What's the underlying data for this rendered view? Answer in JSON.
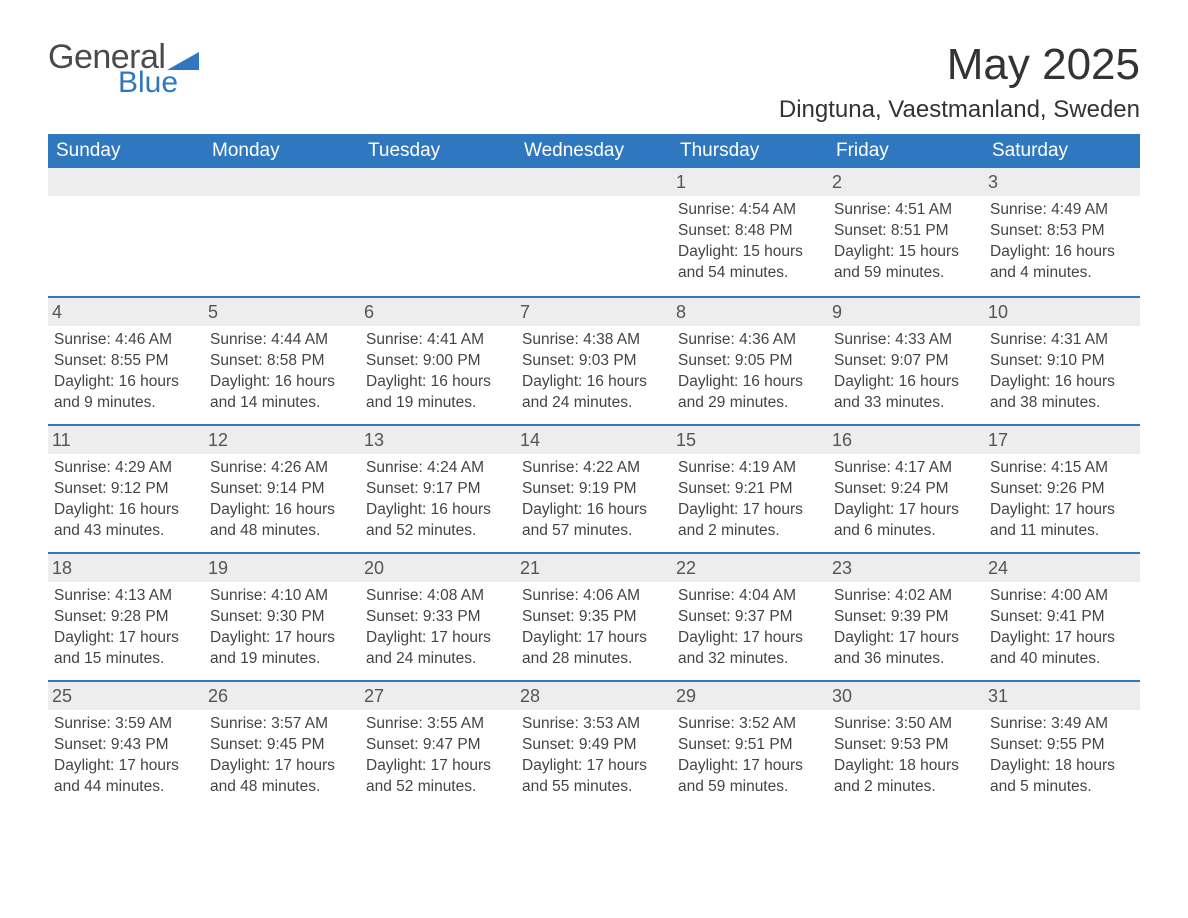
{
  "logo": {
    "text1": "General",
    "text2": "Blue",
    "triangle_color": "#2f78bf"
  },
  "title": "May 2025",
  "location": "Dingtuna, Vaestmanland, Sweden",
  "colors": {
    "header_bg": "#2f78bf",
    "header_text": "#ffffff",
    "daynum_bg": "#ededed",
    "body_text": "#444444",
    "rule": "#2f78bf"
  },
  "typography": {
    "title_fontsize": 44,
    "location_fontsize": 24,
    "dayheader_fontsize": 19,
    "cell_fontsize": 15.5
  },
  "day_headers": [
    "Sunday",
    "Monday",
    "Tuesday",
    "Wednesday",
    "Thursday",
    "Friday",
    "Saturday"
  ],
  "weeks": [
    [
      null,
      null,
      null,
      null,
      {
        "n": "1",
        "sunrise": "Sunrise: 4:54 AM",
        "sunset": "Sunset: 8:48 PM",
        "d1": "Daylight: 15 hours",
        "d2": "and 54 minutes."
      },
      {
        "n": "2",
        "sunrise": "Sunrise: 4:51 AM",
        "sunset": "Sunset: 8:51 PM",
        "d1": "Daylight: 15 hours",
        "d2": "and 59 minutes."
      },
      {
        "n": "3",
        "sunrise": "Sunrise: 4:49 AM",
        "sunset": "Sunset: 8:53 PM",
        "d1": "Daylight: 16 hours",
        "d2": "and 4 minutes."
      }
    ],
    [
      {
        "n": "4",
        "sunrise": "Sunrise: 4:46 AM",
        "sunset": "Sunset: 8:55 PM",
        "d1": "Daylight: 16 hours",
        "d2": "and 9 minutes."
      },
      {
        "n": "5",
        "sunrise": "Sunrise: 4:44 AM",
        "sunset": "Sunset: 8:58 PM",
        "d1": "Daylight: 16 hours",
        "d2": "and 14 minutes."
      },
      {
        "n": "6",
        "sunrise": "Sunrise: 4:41 AM",
        "sunset": "Sunset: 9:00 PM",
        "d1": "Daylight: 16 hours",
        "d2": "and 19 minutes."
      },
      {
        "n": "7",
        "sunrise": "Sunrise: 4:38 AM",
        "sunset": "Sunset: 9:03 PM",
        "d1": "Daylight: 16 hours",
        "d2": "and 24 minutes."
      },
      {
        "n": "8",
        "sunrise": "Sunrise: 4:36 AM",
        "sunset": "Sunset: 9:05 PM",
        "d1": "Daylight: 16 hours",
        "d2": "and 29 minutes."
      },
      {
        "n": "9",
        "sunrise": "Sunrise: 4:33 AM",
        "sunset": "Sunset: 9:07 PM",
        "d1": "Daylight: 16 hours",
        "d2": "and 33 minutes."
      },
      {
        "n": "10",
        "sunrise": "Sunrise: 4:31 AM",
        "sunset": "Sunset: 9:10 PM",
        "d1": "Daylight: 16 hours",
        "d2": "and 38 minutes."
      }
    ],
    [
      {
        "n": "11",
        "sunrise": "Sunrise: 4:29 AM",
        "sunset": "Sunset: 9:12 PM",
        "d1": "Daylight: 16 hours",
        "d2": "and 43 minutes."
      },
      {
        "n": "12",
        "sunrise": "Sunrise: 4:26 AM",
        "sunset": "Sunset: 9:14 PM",
        "d1": "Daylight: 16 hours",
        "d2": "and 48 minutes."
      },
      {
        "n": "13",
        "sunrise": "Sunrise: 4:24 AM",
        "sunset": "Sunset: 9:17 PM",
        "d1": "Daylight: 16 hours",
        "d2": "and 52 minutes."
      },
      {
        "n": "14",
        "sunrise": "Sunrise: 4:22 AM",
        "sunset": "Sunset: 9:19 PM",
        "d1": "Daylight: 16 hours",
        "d2": "and 57 minutes."
      },
      {
        "n": "15",
        "sunrise": "Sunrise: 4:19 AM",
        "sunset": "Sunset: 9:21 PM",
        "d1": "Daylight: 17 hours",
        "d2": "and 2 minutes."
      },
      {
        "n": "16",
        "sunrise": "Sunrise: 4:17 AM",
        "sunset": "Sunset: 9:24 PM",
        "d1": "Daylight: 17 hours",
        "d2": "and 6 minutes."
      },
      {
        "n": "17",
        "sunrise": "Sunrise: 4:15 AM",
        "sunset": "Sunset: 9:26 PM",
        "d1": "Daylight: 17 hours",
        "d2": "and 11 minutes."
      }
    ],
    [
      {
        "n": "18",
        "sunrise": "Sunrise: 4:13 AM",
        "sunset": "Sunset: 9:28 PM",
        "d1": "Daylight: 17 hours",
        "d2": "and 15 minutes."
      },
      {
        "n": "19",
        "sunrise": "Sunrise: 4:10 AM",
        "sunset": "Sunset: 9:30 PM",
        "d1": "Daylight: 17 hours",
        "d2": "and 19 minutes."
      },
      {
        "n": "20",
        "sunrise": "Sunrise: 4:08 AM",
        "sunset": "Sunset: 9:33 PM",
        "d1": "Daylight: 17 hours",
        "d2": "and 24 minutes."
      },
      {
        "n": "21",
        "sunrise": "Sunrise: 4:06 AM",
        "sunset": "Sunset: 9:35 PM",
        "d1": "Daylight: 17 hours",
        "d2": "and 28 minutes."
      },
      {
        "n": "22",
        "sunrise": "Sunrise: 4:04 AM",
        "sunset": "Sunset: 9:37 PM",
        "d1": "Daylight: 17 hours",
        "d2": "and 32 minutes."
      },
      {
        "n": "23",
        "sunrise": "Sunrise: 4:02 AM",
        "sunset": "Sunset: 9:39 PM",
        "d1": "Daylight: 17 hours",
        "d2": "and 36 minutes."
      },
      {
        "n": "24",
        "sunrise": "Sunrise: 4:00 AM",
        "sunset": "Sunset: 9:41 PM",
        "d1": "Daylight: 17 hours",
        "d2": "and 40 minutes."
      }
    ],
    [
      {
        "n": "25",
        "sunrise": "Sunrise: 3:59 AM",
        "sunset": "Sunset: 9:43 PM",
        "d1": "Daylight: 17 hours",
        "d2": "and 44 minutes."
      },
      {
        "n": "26",
        "sunrise": "Sunrise: 3:57 AM",
        "sunset": "Sunset: 9:45 PM",
        "d1": "Daylight: 17 hours",
        "d2": "and 48 minutes."
      },
      {
        "n": "27",
        "sunrise": "Sunrise: 3:55 AM",
        "sunset": "Sunset: 9:47 PM",
        "d1": "Daylight: 17 hours",
        "d2": "and 52 minutes."
      },
      {
        "n": "28",
        "sunrise": "Sunrise: 3:53 AM",
        "sunset": "Sunset: 9:49 PM",
        "d1": "Daylight: 17 hours",
        "d2": "and 55 minutes."
      },
      {
        "n": "29",
        "sunrise": "Sunrise: 3:52 AM",
        "sunset": "Sunset: 9:51 PM",
        "d1": "Daylight: 17 hours",
        "d2": "and 59 minutes."
      },
      {
        "n": "30",
        "sunrise": "Sunrise: 3:50 AM",
        "sunset": "Sunset: 9:53 PM",
        "d1": "Daylight: 18 hours",
        "d2": "and 2 minutes."
      },
      {
        "n": "31",
        "sunrise": "Sunrise: 3:49 AM",
        "sunset": "Sunset: 9:55 PM",
        "d1": "Daylight: 18 hours",
        "d2": "and 5 minutes."
      }
    ]
  ]
}
